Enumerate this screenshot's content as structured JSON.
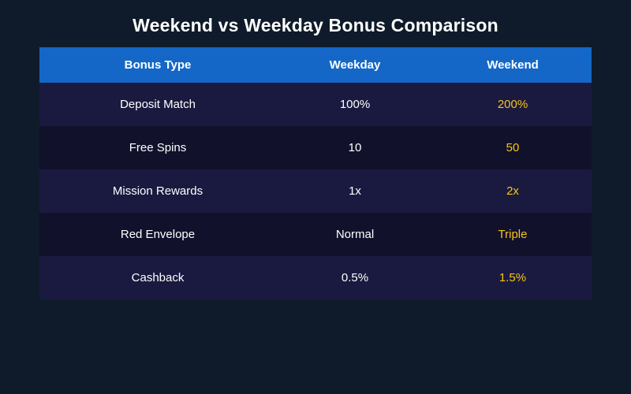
{
  "title": "Weekend vs Weekday Bonus Comparison",
  "colors": {
    "background": "#0f1b2a",
    "header": "#1467c6",
    "row_odd": "#1a1a40",
    "row_even": "#12112b",
    "weekend_text": "#f5c518"
  },
  "table": {
    "headers": [
      "Bonus Type",
      "Weekday",
      "Weekend"
    ],
    "rows": [
      [
        "Deposit Match",
        "100%",
        "200%"
      ],
      [
        "Free Spins",
        "10",
        "50"
      ],
      [
        "Mission Rewards",
        "1x",
        "2x"
      ],
      [
        "Red Envelope",
        "Normal",
        "Triple"
      ],
      [
        "Cashback",
        "0.5%",
        "1.5%"
      ]
    ]
  }
}
